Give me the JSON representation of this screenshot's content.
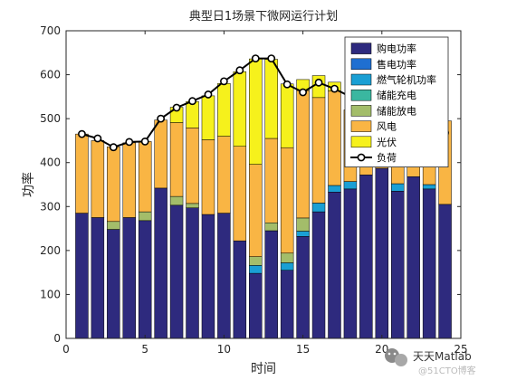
{
  "chart_data": {
    "type": "bar",
    "stacked": true,
    "title": "典型日1场景下微网运行计划",
    "xlabel": "时间",
    "ylabel": "功率",
    "xlim": [
      0,
      25
    ],
    "ylim": [
      0,
      700
    ],
    "xticks": [
      0,
      5,
      10,
      15,
      20,
      25
    ],
    "yticks": [
      0,
      100,
      200,
      300,
      400,
      500,
      600,
      700
    ],
    "grid": false,
    "legend_position": "top-right",
    "x": [
      1,
      2,
      3,
      4,
      5,
      6,
      7,
      8,
      9,
      10,
      11,
      12,
      13,
      14,
      15,
      16,
      17,
      18,
      19,
      20,
      21,
      22,
      23,
      24
    ],
    "series": [
      {
        "name": "购电功率",
        "color": "#2e2a7e",
        "values": [
          285,
          275,
          248,
          275,
          268,
          342,
          303,
          297,
          282,
          285,
          222,
          148,
          245,
          155,
          232,
          288,
          333,
          340,
          372,
          387,
          335,
          368,
          340,
          305
        ]
      },
      {
        "name": "售电功率",
        "color": "#1f6fd1",
        "values": [
          0,
          0,
          0,
          0,
          0,
          0,
          0,
          0,
          0,
          0,
          0,
          0,
          0,
          0,
          0,
          0,
          0,
          0,
          0,
          0,
          0,
          0,
          0,
          0
        ]
      },
      {
        "name": "燃气轮机功率",
        "color": "#1a9fd4",
        "values": [
          0,
          0,
          0,
          0,
          0,
          0,
          0,
          0,
          0,
          0,
          0,
          18,
          0,
          17,
          12,
          20,
          15,
          17,
          0,
          0,
          17,
          0,
          10,
          0
        ]
      },
      {
        "name": "储能充电",
        "color": "#3ab7a0",
        "values": [
          0,
          0,
          0,
          0,
          0,
          0,
          0,
          0,
          0,
          0,
          0,
          0,
          0,
          0,
          0,
          0,
          0,
          0,
          0,
          0,
          0,
          0,
          0,
          0
        ]
      },
      {
        "name": "储能放电",
        "color": "#a3bd6a",
        "values": [
          0,
          0,
          18,
          0,
          20,
          0,
          20,
          10,
          0,
          0,
          0,
          20,
          18,
          22,
          30,
          0,
          0,
          0,
          0,
          0,
          0,
          0,
          0,
          0
        ]
      },
      {
        "name": "风电",
        "color": "#f9b544",
        "values": [
          180,
          175,
          170,
          170,
          160,
          155,
          168,
          172,
          170,
          175,
          215,
          210,
          192,
          240,
          290,
          240,
          215,
          163,
          117,
          93,
          107,
          86,
          132,
          190
        ]
      },
      {
        "name": "光伏",
        "color": "#f6f11c",
        "values": [
          0,
          0,
          0,
          0,
          0,
          0,
          35,
          60,
          100,
          120,
          170,
          240,
          180,
          145,
          25,
          50,
          20,
          0,
          0,
          0,
          0,
          0,
          0,
          0
        ]
      },
      {
        "name": "负荷",
        "type": "line",
        "color": "#000000",
        "values": [
          465,
          455,
          435,
          447,
          448,
          500,
          525,
          540,
          555,
          585,
          610,
          637,
          637,
          578,
          560,
          582,
          568,
          550,
          530,
          510,
          490,
          485,
          475,
          468
        ]
      }
    ]
  },
  "watermark": {
    "text": "天天Matlab",
    "sub": "@51CTO博客"
  }
}
